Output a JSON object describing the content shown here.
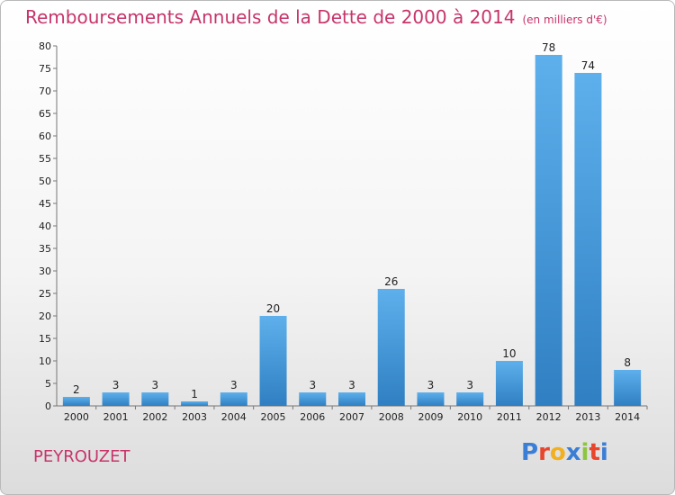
{
  "header": {
    "title": "Remboursements Annuels de la Dette de 2000 à 2014",
    "unit": "(en milliers d'€)"
  },
  "footer": {
    "commune": "PEYROUZET",
    "logo_letters": [
      "P",
      "r",
      "o",
      "x",
      "i",
      "t",
      "i"
    ],
    "logo_colors": [
      "#3a7fd5",
      "#e8452c",
      "#f2b01e",
      "#3a7fd5",
      "#8cc63f",
      "#e8452c",
      "#3a7fd5"
    ]
  },
  "colors": {
    "title": "#c7346b",
    "bar_top": "#5eb0ec",
    "bar_bottom": "#2f7fc2"
  },
  "chart_data": {
    "type": "bar",
    "title": "Remboursements Annuels de la Dette de 2000 à 2014",
    "subtitle": "(en milliers d'€)",
    "categories": [
      "2000",
      "2001",
      "2002",
      "2003",
      "2004",
      "2005",
      "2006",
      "2007",
      "2008",
      "2009",
      "2010",
      "2011",
      "2012",
      "2013",
      "2014"
    ],
    "values": [
      2,
      3,
      3,
      1,
      3,
      20,
      3,
      3,
      26,
      3,
      3,
      10,
      78,
      74,
      8
    ],
    "ylim": [
      0,
      80
    ],
    "yticks": [
      0,
      5,
      10,
      15,
      20,
      25,
      30,
      35,
      40,
      45,
      50,
      55,
      60,
      65,
      70,
      75,
      80
    ],
    "grid": false,
    "xlabel": "",
    "ylabel": ""
  }
}
